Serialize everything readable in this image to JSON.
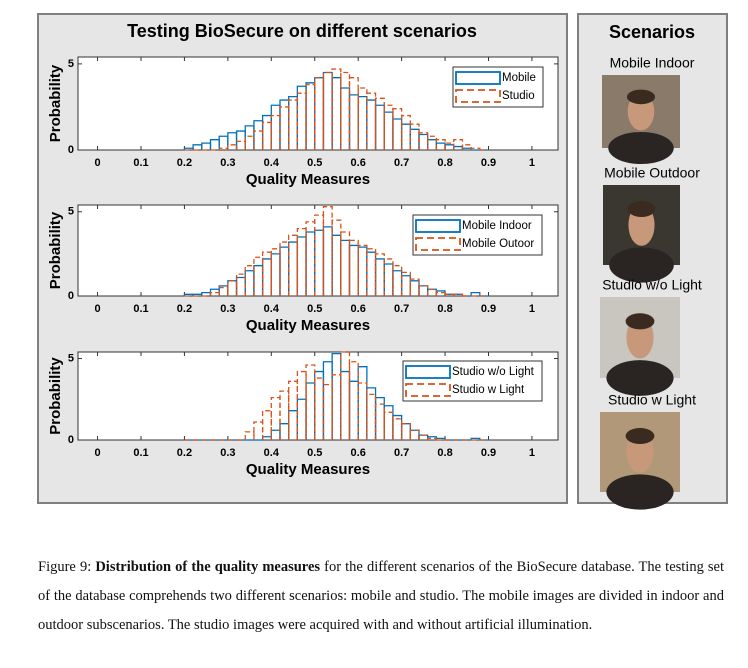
{
  "figure": {
    "title": "Testing BioSecure on different scenarios",
    "charts": [
      {
        "type": "histogram",
        "ylabel": "Probability",
        "xlabel": "Quality Measures",
        "xlim": [
          -0.045,
          1.06
        ],
        "ylim": [
          0,
          5.4
        ],
        "xticks": [
          0,
          0.1,
          0.2,
          0.3,
          0.4,
          0.5,
          0.6,
          0.7,
          0.8,
          0.9,
          1
        ],
        "yticks": [
          0,
          5
        ],
        "legend": "northeast",
        "bins": [
          0.2,
          0.22,
          0.24,
          0.26,
          0.28,
          0.3,
          0.32,
          0.34,
          0.36,
          0.38,
          0.4,
          0.42,
          0.44,
          0.46,
          0.48,
          0.5,
          0.52,
          0.54,
          0.56,
          0.58,
          0.6,
          0.62,
          0.64,
          0.66,
          0.68,
          0.7,
          0.72,
          0.74,
          0.76,
          0.78,
          0.8,
          0.82,
          0.84,
          0.86,
          0.88,
          0.9
        ],
        "series": [
          {
            "name": "Mobile",
            "color": "#0072bd",
            "dash": false,
            "values": [
              0.1,
              0.3,
              0.4,
              0.6,
              0.8,
              1.0,
              1.1,
              1.4,
              1.7,
              2.0,
              2.6,
              2.9,
              3.1,
              3.7,
              3.9,
              4.2,
              4.5,
              4.2,
              3.6,
              3.2,
              3.1,
              2.9,
              2.6,
              2.2,
              1.8,
              1.5,
              1.2,
              0.9,
              0.6,
              0.4,
              0.3,
              0.2,
              0.1,
              0,
              0
            ]
          },
          {
            "name": "Studio",
            "color": "#d95319",
            "dash": true,
            "values": [
              0,
              0,
              0,
              0,
              0.1,
              0.3,
              0.5,
              0.8,
              1.1,
              1.6,
              2.0,
              2.5,
              2.9,
              3.3,
              3.8,
              4.2,
              4.5,
              4.7,
              4.5,
              4.2,
              3.6,
              3.3,
              3.0,
              2.6,
              2.4,
              2.0,
              1.5,
              1.0,
              0.8,
              0.6,
              0.4,
              0.6,
              0.3,
              0.1,
              0
            ]
          }
        ]
      },
      {
        "type": "histogram",
        "ylabel": "Probability",
        "xlabel": "Quality Measures",
        "xlim": [
          -0.045,
          1.06
        ],
        "ylim": [
          0,
          5.4
        ],
        "xticks": [
          0,
          0.1,
          0.2,
          0.3,
          0.4,
          0.5,
          0.6,
          0.7,
          0.8,
          0.9,
          1
        ],
        "yticks": [
          0,
          5
        ],
        "legend": "northeast",
        "bins": [
          0.2,
          0.22,
          0.24,
          0.26,
          0.28,
          0.3,
          0.32,
          0.34,
          0.36,
          0.38,
          0.4,
          0.42,
          0.44,
          0.46,
          0.48,
          0.5,
          0.52,
          0.54,
          0.56,
          0.58,
          0.6,
          0.62,
          0.64,
          0.66,
          0.68,
          0.7,
          0.72,
          0.74,
          0.76,
          0.78,
          0.8,
          0.82,
          0.84,
          0.86,
          0.88,
          0.9
        ],
        "series": [
          {
            "name": "Mobile Indoor",
            "color": "#0072bd",
            "dash": false,
            "values": [
              0.1,
              0.1,
              0.2,
              0.4,
              0.6,
              0.9,
              1.1,
              1.5,
              1.8,
              2.2,
              2.5,
              2.9,
              3.2,
              3.5,
              3.8,
              3.9,
              4.1,
              3.6,
              3.3,
              3.0,
              2.9,
              2.6,
              2.2,
              1.9,
              1.5,
              1.2,
              0.9,
              0.6,
              0.4,
              0.3,
              0.1,
              0.1,
              0,
              0.2,
              0
            ]
          },
          {
            "name": "Mobile Outoor",
            "color": "#d95319",
            "dash": true,
            "values": [
              0,
              0,
              0,
              0.2,
              0.5,
              0.9,
              1.3,
              1.8,
              2.3,
              2.6,
              2.8,
              3.2,
              3.6,
              4.0,
              4.4,
              4.8,
              5.3,
              4.5,
              3.8,
              3.3,
              3.0,
              2.8,
              2.5,
              2.2,
              1.8,
              1.4,
              1.0,
              0.6,
              0.4,
              0.2,
              0.1,
              0.1,
              0,
              0,
              0
            ]
          }
        ]
      },
      {
        "type": "histogram",
        "ylabel": "Probability",
        "xlabel": "Quality Measures",
        "xlim": [
          -0.045,
          1.06
        ],
        "ylim": [
          0,
          5.4
        ],
        "xticks": [
          0,
          0.1,
          0.2,
          0.3,
          0.4,
          0.5,
          0.6,
          0.7,
          0.8,
          0.9,
          1
        ],
        "yticks": [
          0,
          5
        ],
        "legend": "northeast",
        "bins": [
          0.2,
          0.22,
          0.24,
          0.26,
          0.28,
          0.3,
          0.32,
          0.34,
          0.36,
          0.38,
          0.4,
          0.42,
          0.44,
          0.46,
          0.48,
          0.5,
          0.52,
          0.54,
          0.56,
          0.58,
          0.6,
          0.62,
          0.64,
          0.66,
          0.68,
          0.7,
          0.72,
          0.74,
          0.76,
          0.78,
          0.8,
          0.82,
          0.84,
          0.86,
          0.88,
          0.9
        ],
        "series": [
          {
            "name": "Studio w/o Light",
            "color": "#0072bd",
            "dash": false,
            "values": [
              0,
              0,
              0,
              0,
              0,
              0,
              0,
              0,
              0,
              0.2,
              0.6,
              1.0,
              1.8,
              2.5,
              3.5,
              4.2,
              4.8,
              5.3,
              4.2,
              3.6,
              4.5,
              3.2,
              2.6,
              2.1,
              1.5,
              1.0,
              0.6,
              0.3,
              0.2,
              0.1,
              0,
              0,
              0,
              0.1,
              0
            ]
          },
          {
            "name": "Studio w Light",
            "color": "#d95319",
            "dash": true,
            "values": [
              0,
              0,
              0,
              0,
              0,
              0,
              0,
              0.5,
              1.1,
              1.8,
              2.6,
              3.0,
              3.6,
              4.2,
              4.6,
              3.8,
              3.4,
              4.0,
              5.4,
              4.8,
              3.5,
              2.8,
              2.2,
              1.7,
              1.3,
              1.0,
              0.6,
              0.3,
              0.1,
              0,
              0,
              0,
              0,
              0,
              0
            ]
          }
        ]
      }
    ]
  },
  "scenarios": {
    "title": "Scenarios",
    "items": [
      "Mobile Indoor",
      "Mobile Outdoor",
      "Studio w/o Light",
      "Studio w Light"
    ]
  },
  "caption": {
    "label": "Figure 9:",
    "bold": "Distribution of the quality measures",
    "text": "for the different scenarios of the BioSecure database. The testing set of the database comprehends two different scenarios: mobile and studio. The mobile images are divided in indoor and outdoor subscenarios. The studio images were acquired with and without artificial illumination."
  }
}
